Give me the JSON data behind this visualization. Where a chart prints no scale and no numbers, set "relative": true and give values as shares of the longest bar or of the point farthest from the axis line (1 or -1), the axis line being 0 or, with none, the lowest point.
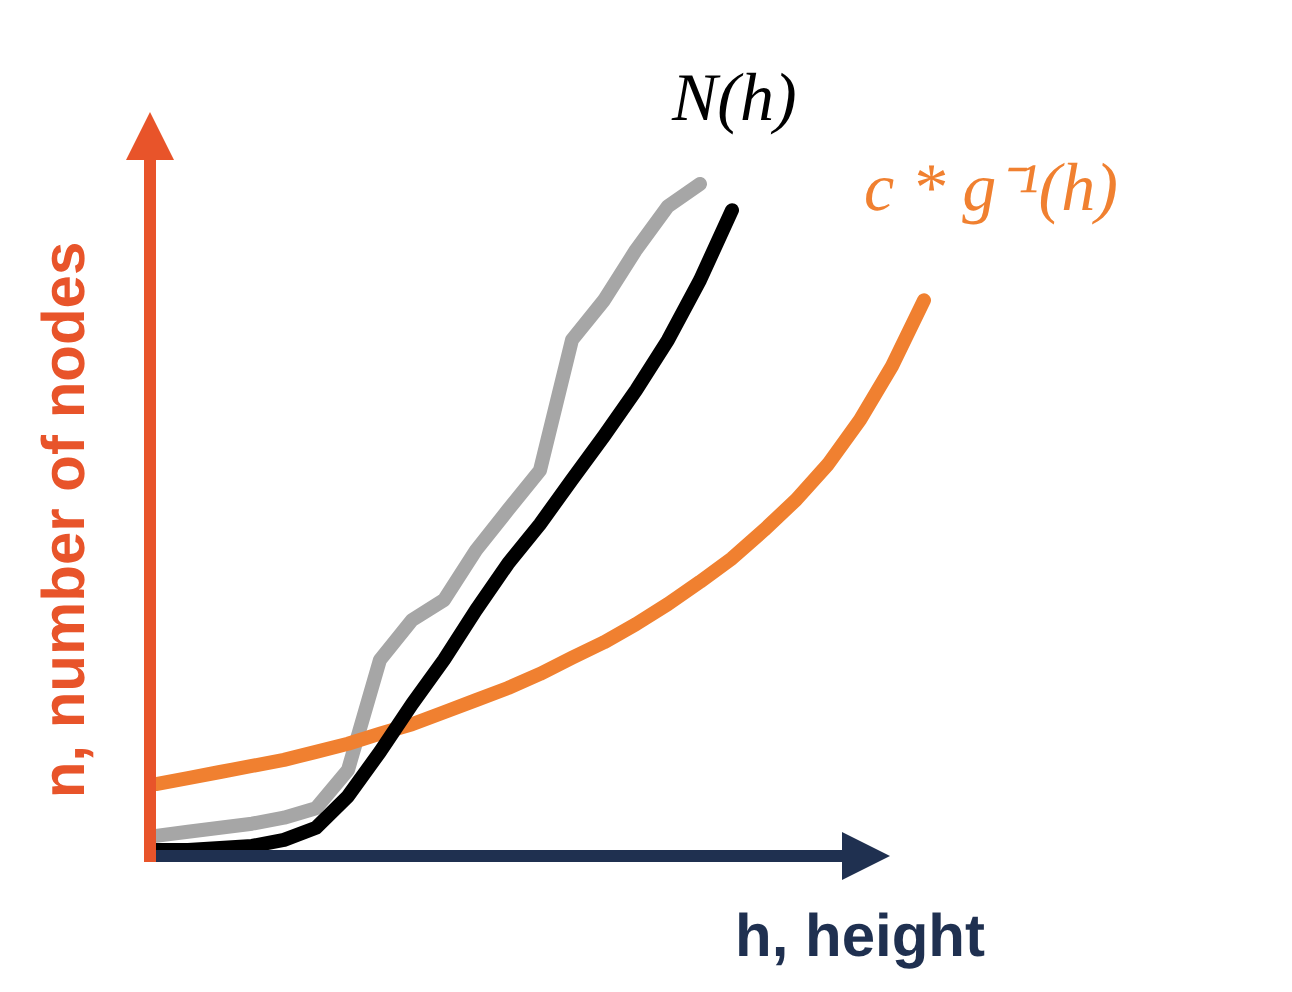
{
  "chart_data": {
    "type": "line",
    "relative": true,
    "xlabel": "h, height",
    "ylabel": "n, number of nodes",
    "categories": [
      null,
      null,
      null,
      null,
      null,
      null,
      null,
      null,
      null,
      null,
      null,
      null,
      null,
      null,
      null,
      null,
      null,
      null,
      null,
      null,
      null,
      null,
      null,
      null,
      null
    ],
    "series": [
      {
        "color": "#a6a6a6",
        "values": [
          0.03,
          0.036,
          0.042,
          0.048,
          0.057,
          0.071,
          0.128,
          0.292,
          0.351,
          0.381,
          0.455,
          0.515,
          0.574,
          0.768,
          0.827,
          0.902,
          0.967,
          1,
          null,
          null,
          null,
          null,
          null,
          null,
          null
        ]
      },
      {
        "name": "c * g⁻¹(h)",
        "color": "#f08030",
        "values": [
          0.107,
          0.116,
          0.125,
          0.134,
          0.143,
          0.155,
          0.167,
          0.182,
          0.196,
          0.214,
          0.232,
          0.25,
          0.271,
          0.295,
          0.318,
          0.345,
          0.375,
          0.408,
          0.443,
          0.485,
          0.53,
          0.583,
          0.649,
          0.729,
          0.827
        ]
      },
      {
        "name": "N(h)",
        "color": "#000000",
        "values": [
          0.009,
          0.009,
          0.012,
          0.015,
          0.024,
          0.042,
          0.089,
          0.155,
          0.226,
          0.292,
          0.366,
          0.435,
          0.494,
          0.56,
          0.625,
          0.693,
          0.768,
          0.857,
          0.961,
          null,
          null,
          null,
          null,
          null,
          null
        ]
      }
    ]
  }
}
